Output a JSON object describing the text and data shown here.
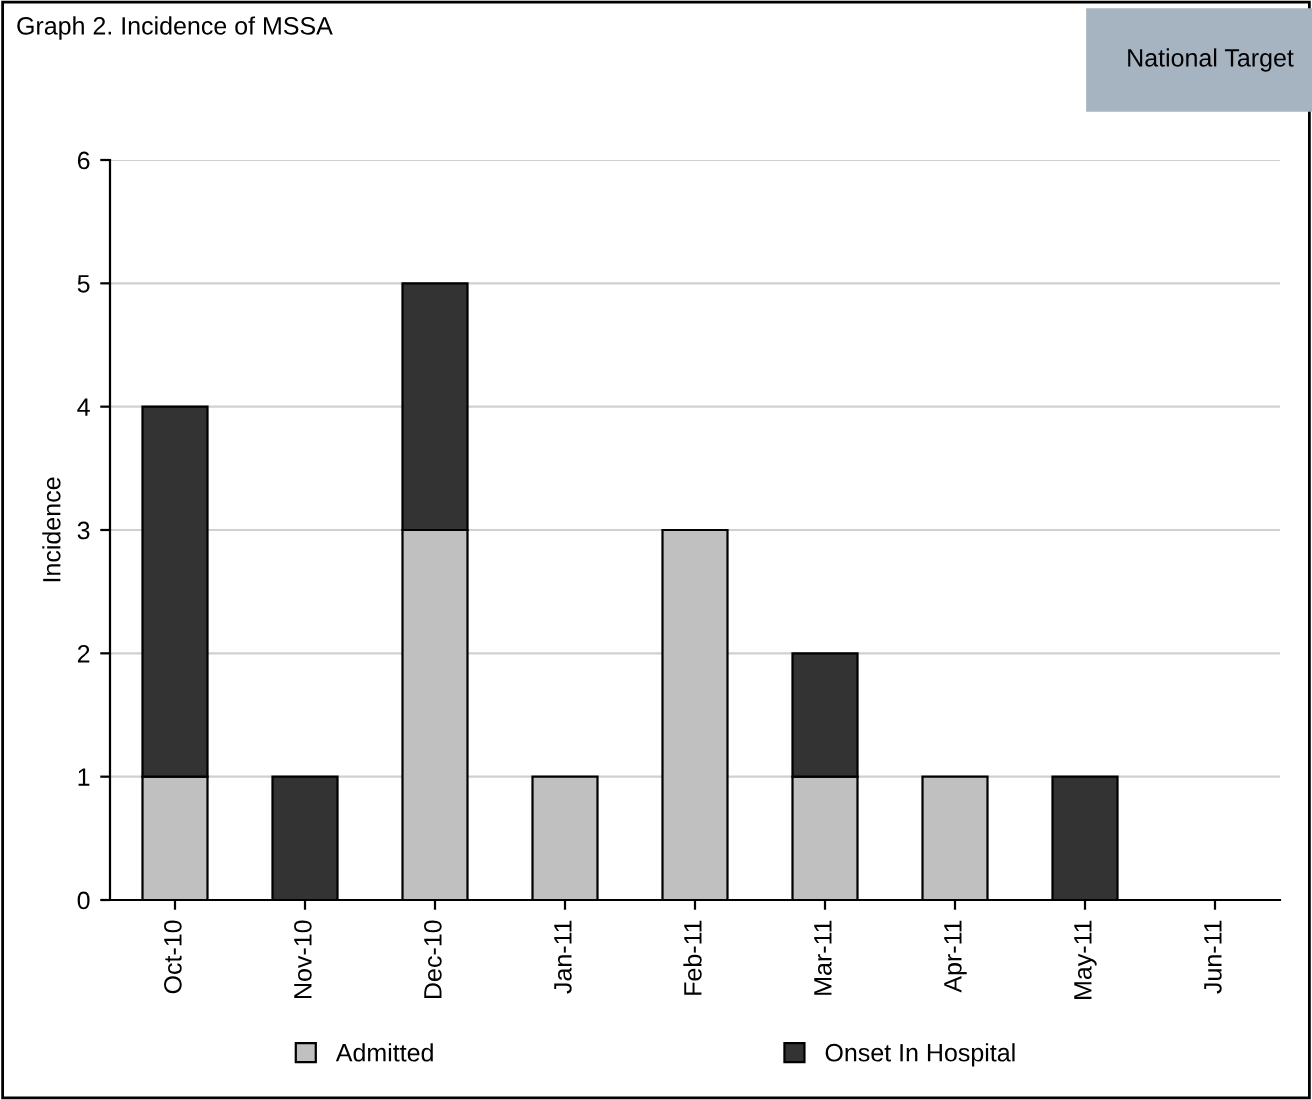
{
  "chart_data": {
    "type": "bar",
    "title": "Graph 2. Incidence of MSSA",
    "ylabel": "Incidence",
    "categories": [
      "Oct-10",
      "Nov-10",
      "Dec-10",
      "Jan-11",
      "Feb-11",
      "Mar-11",
      "Apr-11",
      "May-11",
      "Jun-11"
    ],
    "series": [
      {
        "name": "Admitted",
        "color": "#c0c0c0",
        "values": [
          1,
          0,
          3,
          1,
          3,
          1,
          1,
          0,
          0
        ]
      },
      {
        "name": "Onset In Hospital",
        "color": "#333333",
        "values": [
          3,
          1,
          2,
          0,
          0,
          1,
          0,
          1,
          0
        ]
      }
    ],
    "stacked": true,
    "ylim": [
      0,
      6
    ],
    "yticks": [
      0,
      1,
      2,
      3,
      4,
      5,
      6
    ],
    "grid": "y",
    "legend": "bottom",
    "annotations": [
      "National Target"
    ]
  }
}
